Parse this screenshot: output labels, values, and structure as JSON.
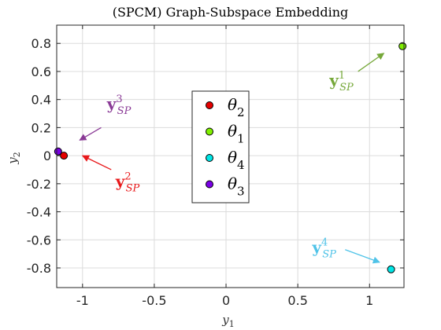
{
  "chart_data": {
    "type": "scatter",
    "title": "(SPCM) Graph-Subspace Embedding",
    "xlabel": {
      "base": "y",
      "sub": "1"
    },
    "ylabel": {
      "base": "y",
      "sub": "2"
    },
    "xlim": [
      -1.18,
      1.24
    ],
    "ylim": [
      -0.94,
      0.93
    ],
    "xticks": [
      -1,
      -0.5,
      0,
      0.5,
      1
    ],
    "xtick_labels": [
      "-1",
      "-0.5",
      "0",
      "0.5",
      "1"
    ],
    "yticks": [
      -0.8,
      -0.6,
      -0.4,
      -0.2,
      0,
      0.2,
      0.4,
      0.6,
      0.8
    ],
    "ytick_labels": [
      "-0.8",
      "-0.6",
      "-0.4",
      "-0.2",
      "0",
      "0.2",
      "0.4",
      "0.6",
      "0.8"
    ],
    "grid": true,
    "legend_position": "center",
    "series": [
      {
        "name": "θ2",
        "label_base": "θ",
        "label_sub": "2",
        "color": "#e50000",
        "x": -1.13,
        "y": 0.0
      },
      {
        "name": "θ1",
        "label_base": "θ",
        "label_sub": "1",
        "color": "#80f000",
        "x": 1.23,
        "y": 0.78
      },
      {
        "name": "θ4",
        "label_base": "θ",
        "label_sub": "4",
        "color": "#00e6e6",
        "x": 1.15,
        "y": -0.81
      },
      {
        "name": "θ3",
        "label_base": "θ",
        "label_sub": "3",
        "color": "#7a00e6",
        "x": -1.17,
        "y": 0.03
      }
    ],
    "annotations": [
      {
        "base": "y",
        "sub": "SP",
        "sup": "1",
        "color": "#76a83a",
        "text_x": 0.72,
        "text_y": 0.5,
        "arrow_from": [
          0.92,
          0.6
        ],
        "arrow_to": [
          1.1,
          0.73
        ]
      },
      {
        "base": "y",
        "sub": "SP",
        "sup": "2",
        "color": "#e8181a",
        "text_x": -0.77,
        "text_y": -0.22,
        "arrow_from": [
          -0.8,
          -0.1
        ],
        "arrow_to": [
          -1.0,
          0.0
        ]
      },
      {
        "base": "y",
        "sub": "SP",
        "sup": "3",
        "color": "#8a3a96",
        "text_x": -0.83,
        "text_y": 0.33,
        "arrow_from": [
          -0.87,
          0.2
        ],
        "arrow_to": [
          -1.02,
          0.11
        ]
      },
      {
        "base": "y",
        "sub": "SP",
        "sup": "4",
        "color": "#4fc3e8",
        "text_x": 0.6,
        "text_y": -0.69,
        "arrow_from": [
          0.83,
          -0.67
        ],
        "arrow_to": [
          1.07,
          -0.76
        ]
      }
    ]
  }
}
